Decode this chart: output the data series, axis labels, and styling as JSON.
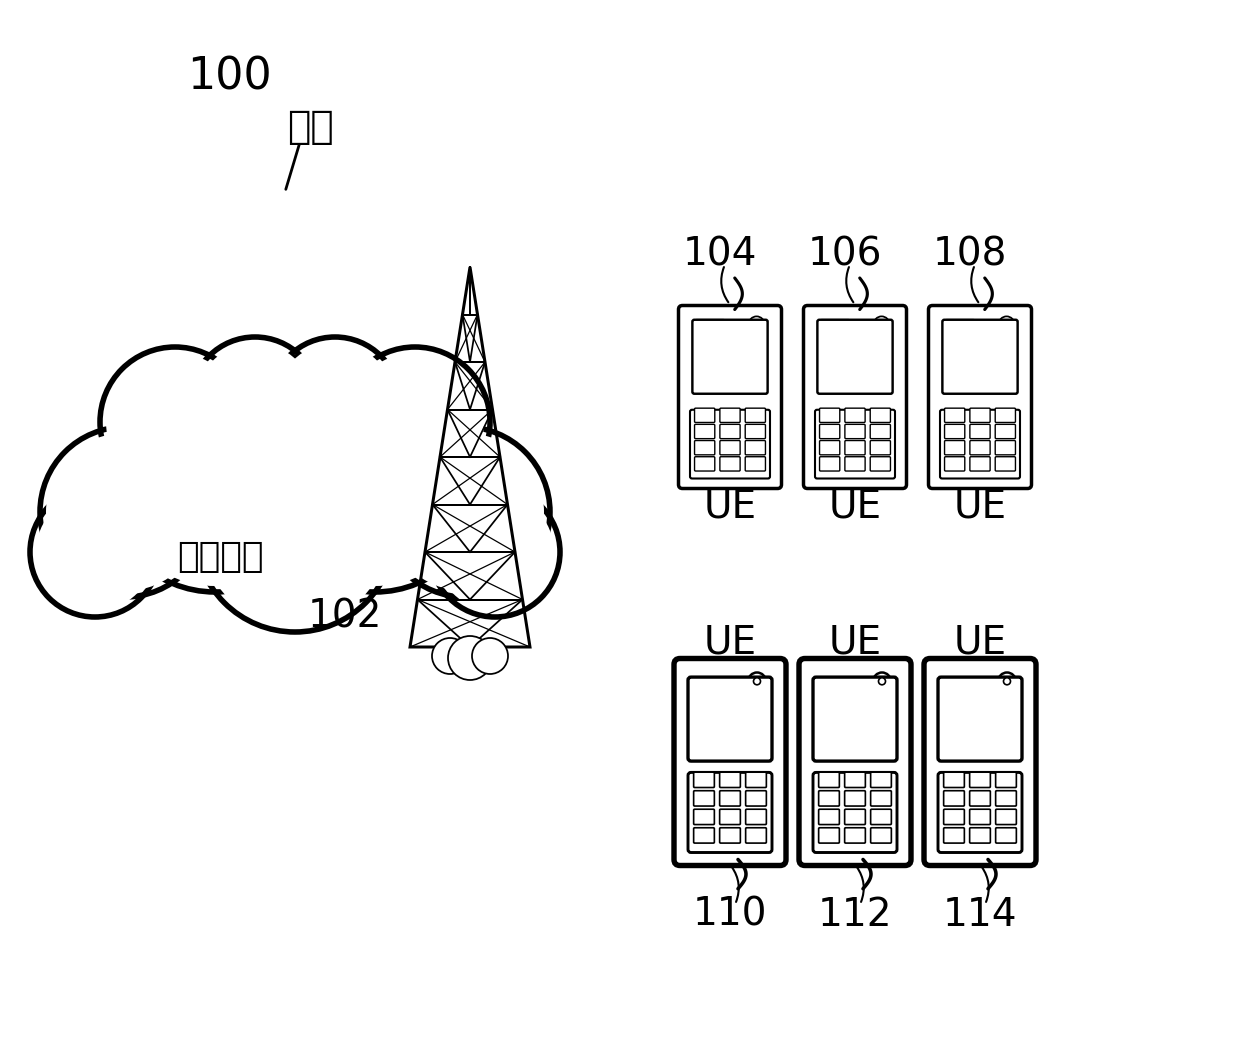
{
  "bg_color": "#ffffff",
  "cloud_id": "100",
  "cloud_label": "网络",
  "cloud_sublabel": "网络设备",
  "tower_id": "102",
  "ue_ids_top": [
    "104",
    "106",
    "108"
  ],
  "ue_ids_bottom": [
    "110",
    "112",
    "114"
  ],
  "ue_label": "UE",
  "font_size_id": 28,
  "font_size_label": 26,
  "font_size_ue": 28
}
